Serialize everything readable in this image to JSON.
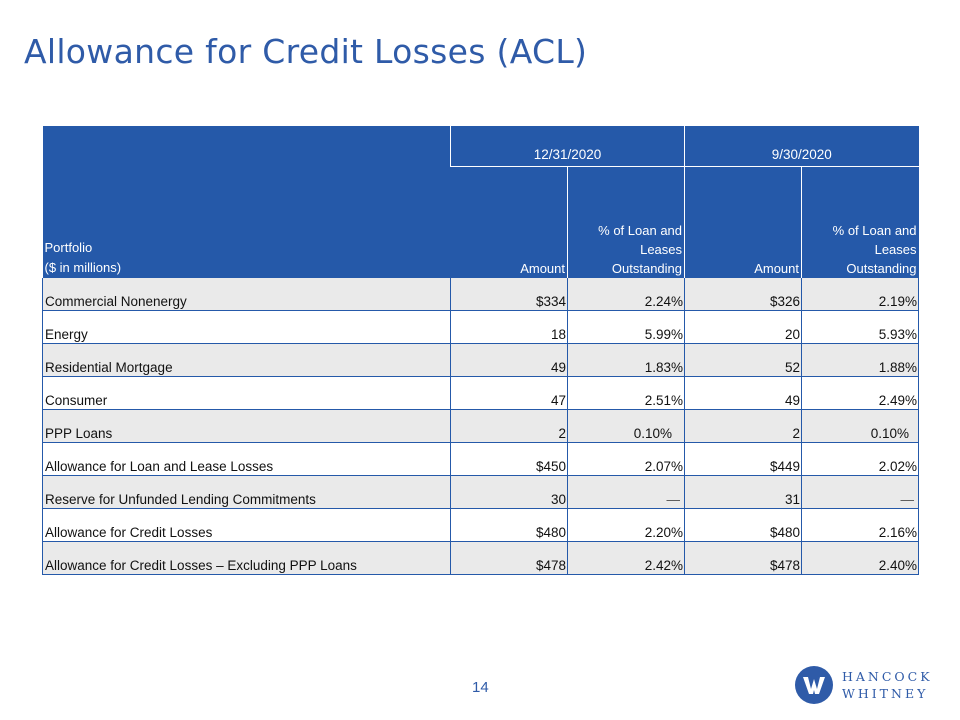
{
  "slide": {
    "title": "Allowance for Credit Losses (ACL)",
    "page_number": "14"
  },
  "table": {
    "header": {
      "portfolio_line1": "Portfolio",
      "portfolio_line2": "($ in millions)",
      "period1": "12/31/2020",
      "period2": "9/30/2020",
      "amount_label": "Amount",
      "pct_label_line1": "% of Loan and",
      "pct_label_line2": "Leases",
      "pct_label_line3": "Outstanding"
    },
    "rows": [
      {
        "label": "Commercial Nonenergy",
        "amt1": "$334",
        "pct1": "2.24%",
        "amt2": "$326",
        "pct2": "2.19%"
      },
      {
        "label": "Energy",
        "amt1": "18",
        "pct1": "5.99%",
        "amt2": "20",
        "pct2": "5.93%"
      },
      {
        "label": "Residential Mortgage",
        "amt1": "49",
        "pct1": "1.83%",
        "amt2": "52",
        "pct2": "1.88%"
      },
      {
        "label": "Consumer",
        "amt1": "47",
        "pct1": "2.51%",
        "amt2": "49",
        "pct2": "2.49%"
      },
      {
        "label": "PPP Loans",
        "amt1": "2",
        "pct1": "0.10%",
        "amt2": "2",
        "pct2": "0.10%"
      },
      {
        "label": "Allowance for Loan and Lease Losses",
        "amt1": "$450",
        "pct1": "2.07%",
        "amt2": "$449",
        "pct2": "2.02%"
      },
      {
        "label": "Reserve for Unfunded Lending Commitments",
        "amt1": "30",
        "pct1": "—",
        "amt2": "31",
        "pct2": "—"
      },
      {
        "label": "Allowance for Credit Losses",
        "amt1": "$480",
        "pct1": "2.20%",
        "amt2": "$480",
        "pct2": "2.16%"
      },
      {
        "label": "Allowance for Credit Losses – Excluding PPP Loans",
        "amt1": "$478",
        "pct1": "2.42%",
        "amt2": "$478",
        "pct2": "2.40%"
      }
    ]
  },
  "logo": {
    "line1": "HANCOCK",
    "line2": "WHITNEY",
    "icon": "hancock-whitney-logo-mark"
  },
  "colors": {
    "header_bg": "#2559a9",
    "title": "#2f5ba8",
    "row_shade": "#eaeaea"
  }
}
